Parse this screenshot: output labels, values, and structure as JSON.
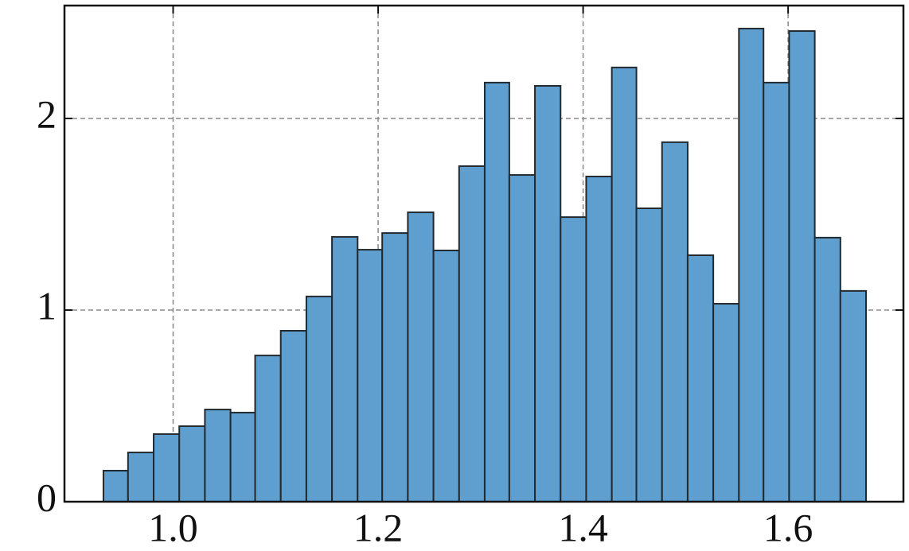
{
  "chart_data": {
    "type": "histogram",
    "bins": [
      0.932,
      0.956,
      0.981,
      1.006,
      1.031,
      1.056,
      1.08,
      1.105,
      1.13,
      1.155,
      1.18,
      1.204,
      1.229,
      1.254,
      1.279,
      1.304,
      1.328,
      1.353,
      1.378,
      1.403,
      1.428,
      1.452,
      1.477,
      1.502,
      1.527,
      1.552,
      1.576,
      1.601,
      1.626,
      1.651,
      1.676
    ],
    "values": [
      0.162,
      0.257,
      0.353,
      0.394,
      0.481,
      0.465,
      0.763,
      0.892,
      1.071,
      1.382,
      1.315,
      1.402,
      1.51,
      1.311,
      1.751,
      2.187,
      1.705,
      2.17,
      1.485,
      1.697,
      2.266,
      1.531,
      1.876,
      1.286,
      1.033,
      2.469,
      2.187,
      2.456,
      1.378,
      1.1
    ],
    "color": "#5f9fcf",
    "edgecolor": "#222a30",
    "xlim": [
      0.894,
      1.7125
    ],
    "ylim": [
      0,
      2.589
    ],
    "xticks": [
      {
        "value": 1,
        "label": "1.0"
      },
      1.2,
      1.4,
      1.6
    ],
    "yticks": [
      0,
      1,
      2
    ],
    "grid": true
  }
}
